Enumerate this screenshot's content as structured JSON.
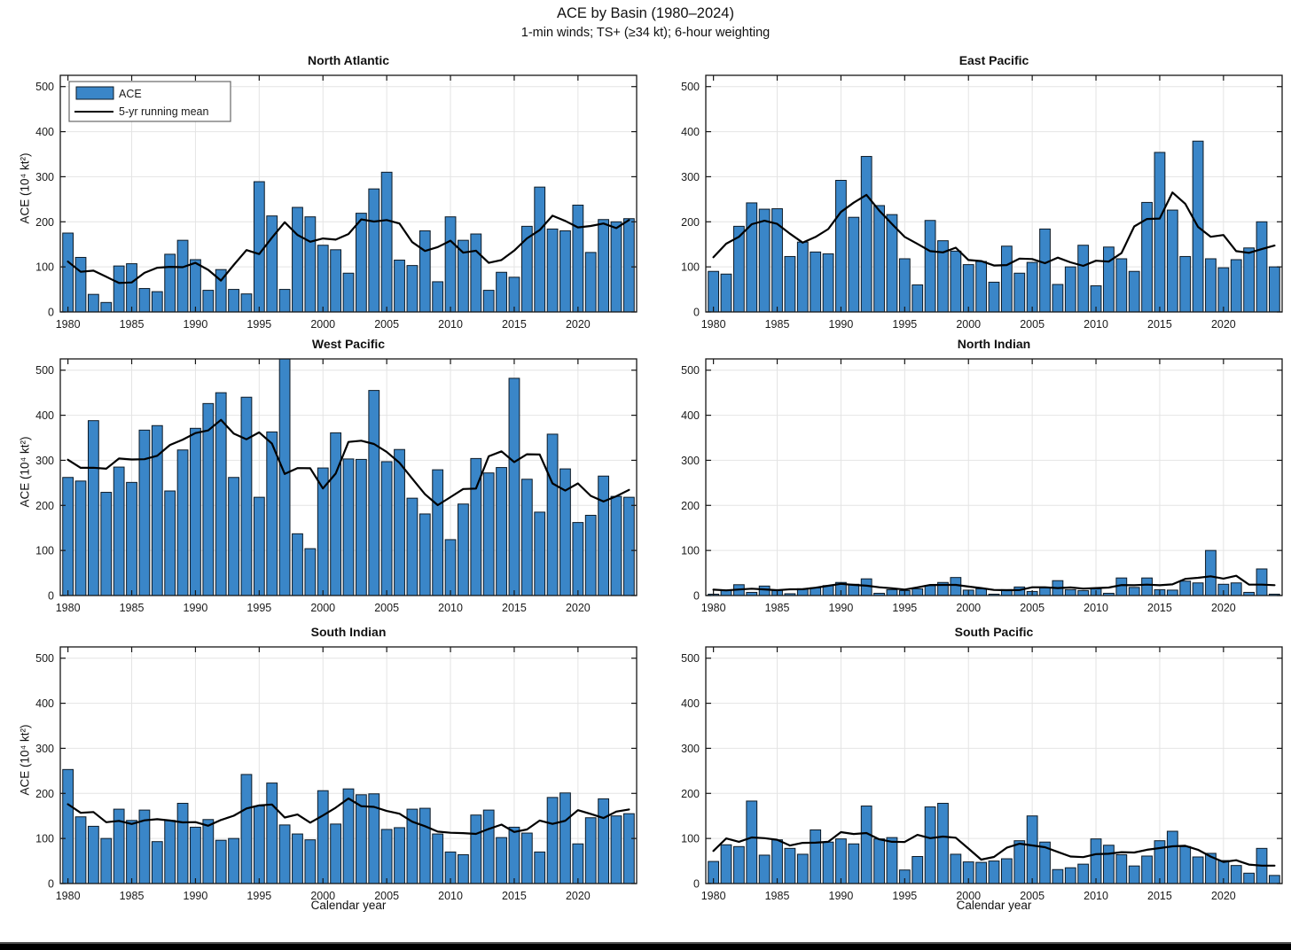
{
  "page": {
    "title": "ACE by Basin (1980–2024)",
    "subtitle": "1-min winds; TS+ (≥34 kt); 6-hour weighting"
  },
  "legend": {
    "bar_label": "ACE",
    "line_label": "5-yr running mean"
  },
  "colors": {
    "bar_fill": "#3a86c8",
    "bar_edge": "#0d1a26",
    "mean_line": "#000000",
    "grid": "#e4e4e4",
    "axis": "#161616"
  },
  "chart_data": {
    "type": "bar",
    "title": "ACE by Basin (1980–2024)",
    "subtitle": "1-min winds; TS+ (≥34 kt); 6-hour weighting",
    "xlabel": "Calendar year",
    "ylabel": "ACE  (10⁴ kt²)",
    "ylim": [
      0,
      525
    ],
    "xlim": [
      1979.4,
      2024.6
    ],
    "yticks": [
      0,
      100,
      200,
      300,
      400,
      500
    ],
    "xticks": [
      1980,
      1985,
      1990,
      1995,
      2000,
      2005,
      2010,
      2015,
      2020
    ],
    "grid": true,
    "legend_position": "top-left of first panel only",
    "line_definition": "5-yr centered running mean (window shrinks at ends), computed from values",
    "x": [
      1980,
      1981,
      1982,
      1983,
      1984,
      1985,
      1986,
      1987,
      1988,
      1989,
      1990,
      1991,
      1992,
      1993,
      1994,
      1995,
      1996,
      1997,
      1998,
      1999,
      2000,
      2001,
      2002,
      2003,
      2004,
      2005,
      2006,
      2007,
      2008,
      2009,
      2010,
      2011,
      2012,
      2013,
      2014,
      2015,
      2016,
      2017,
      2018,
      2019,
      2020,
      2021,
      2022,
      2023,
      2024
    ],
    "panels": [
      {
        "title": "North Atlantic",
        "values": [
          175,
          121,
          39,
          21,
          102,
          107,
          52,
          45,
          128,
          159,
          116,
          48,
          94,
          50,
          40,
          289,
          213,
          50,
          232,
          211,
          148,
          138,
          86,
          219,
          273,
          310,
          115,
          103,
          180,
          67,
          211,
          159,
          173,
          48,
          88,
          77,
          190,
          277,
          184,
          180,
          237,
          132,
          205,
          200,
          207
        ]
      },
      {
        "title": "East Pacific",
        "values": [
          90,
          84,
          190,
          242,
          228,
          229,
          123,
          155,
          133,
          129,
          292,
          210,
          345,
          236,
          216,
          118,
          60,
          203,
          158,
          135,
          105,
          112,
          66,
          146,
          86,
          110,
          184,
          61,
          100,
          148,
          58,
          144,
          118,
          90,
          243,
          354,
          226,
          123,
          379,
          118,
          98,
          116,
          142,
          200,
          100
        ]
      },
      {
        "title": "West Pacific",
        "values": [
          262,
          254,
          388,
          229,
          285,
          251,
          367,
          377,
          232,
          323,
          371,
          426,
          450,
          262,
          440,
          218,
          363,
          527,
          137,
          104,
          283,
          361,
          303,
          302,
          455,
          297,
          324,
          216,
          181,
          279,
          124,
          203,
          304,
          272,
          284,
          482,
          258,
          185,
          358,
          281,
          162,
          178,
          265,
          220,
          218
        ]
      },
      {
        "title": "North Indian",
        "values": [
          3,
          12,
          24,
          7,
          21,
          12,
          4,
          15,
          17,
          22,
          29,
          25,
          37,
          5,
          13,
          11,
          15,
          22,
          29,
          40,
          12,
          15,
          3,
          13,
          19,
          9,
          17,
          33,
          13,
          11,
          15,
          5,
          39,
          18,
          39,
          13,
          12,
          32,
          28,
          100,
          25,
          28,
          7,
          59,
          3
        ]
      },
      {
        "title": "South Indian",
        "values": [
          253,
          148,
          127,
          100,
          165,
          140,
          163,
          93,
          140,
          178,
          125,
          142,
          96,
          100,
          242,
          172,
          223,
          130,
          110,
          97,
          206,
          132,
          210,
          197,
          199,
          120,
          124,
          165,
          167,
          110,
          70,
          64,
          152,
          163,
          102,
          125,
          112,
          70,
          191,
          201,
          88,
          146,
          188,
          150,
          155
        ]
      },
      {
        "title": "South Pacific",
        "values": [
          49,
          86,
          82,
          183,
          63,
          97,
          78,
          65,
          119,
          92,
          99,
          88,
          172,
          99,
          102,
          30,
          60,
          170,
          178,
          65,
          48,
          47,
          50,
          55,
          95,
          150,
          92,
          31,
          35,
          43,
          99,
          85,
          64,
          39,
          61,
          95,
          116,
          82,
          59,
          67,
          51,
          40,
          23,
          78,
          18
        ]
      }
    ]
  },
  "axis_labels": {
    "ylabel": "ACE  (10⁴ kt²)",
    "xlabel": "Calendar year"
  }
}
